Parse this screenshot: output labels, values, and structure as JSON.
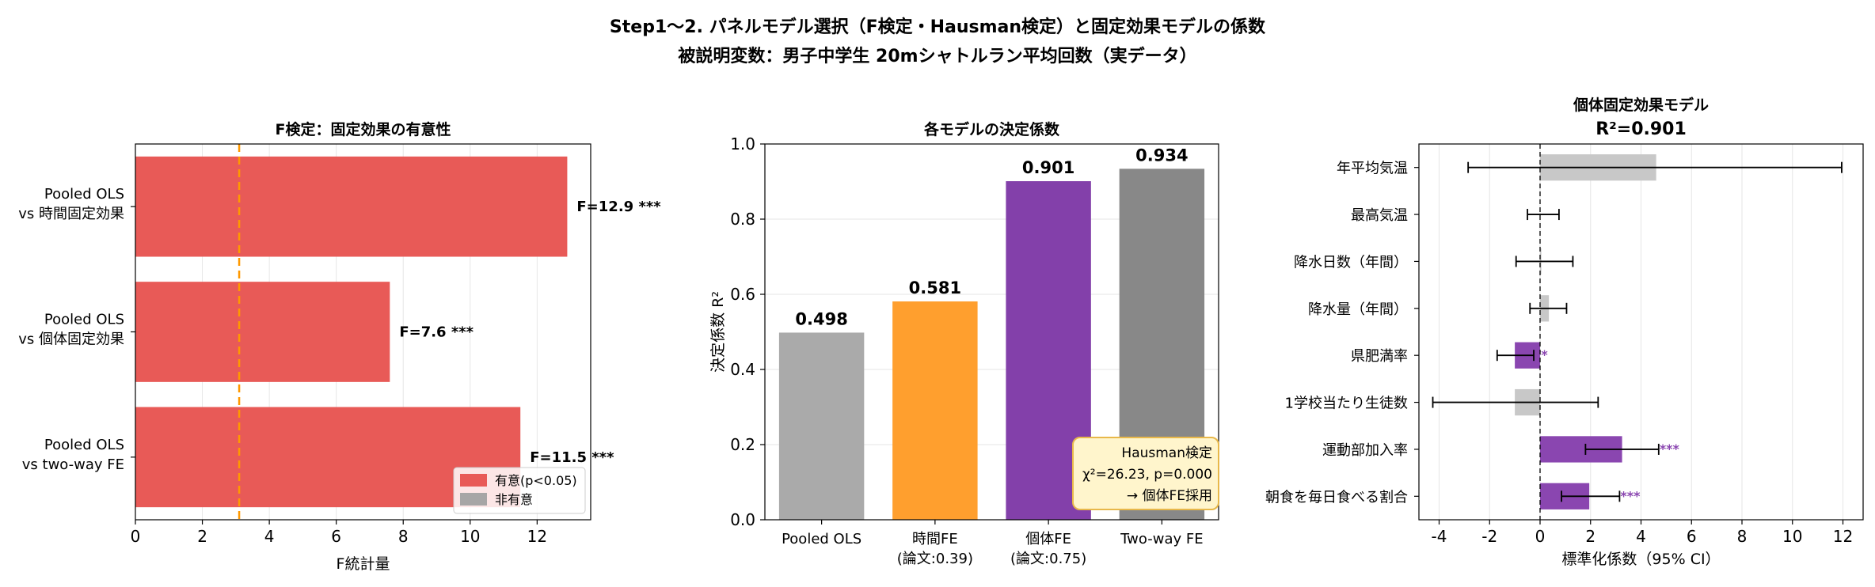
{
  "figure": {
    "title_line1": "Step1～2. パネルモデル選択（F検定・Hausman検定）と固定効果モデルの係数",
    "title_line2": "被説明変数：男子中学生 20mシャトルラン平均回数（実データ）"
  },
  "colors": {
    "significant_red": "#E85A57",
    "nonsignificant_gray": "#A6A6A6",
    "pooled_gray": "#AAAAAA",
    "time_fe_orange": "#FF9F2E",
    "individual_fe_purple": "#8340AA",
    "twoway_gray": "#888888",
    "threshold_orange": "#FF9900",
    "coef_purple": "#8A46B0",
    "coef_gray": "#C8C8C8",
    "hausman_box_fill": "#FFF5CC",
    "hausman_box_edge": "#E8B84A"
  },
  "chart_data": [
    {
      "type": "bar",
      "orientation": "horizontal",
      "title": "F検定：固定効果の有意性",
      "xlabel": "F統計量",
      "ylabel": "",
      "categories": [
        [
          "Pooled OLS",
          "vs 時間固定効果"
        ],
        [
          "Pooled OLS",
          "vs 個体固定効果"
        ],
        [
          "Pooled OLS",
          "vs two-way FE"
        ]
      ],
      "values": [
        12.9,
        7.6,
        11.5
      ],
      "value_labels": [
        "F=12.9 ***",
        "F=7.6 ***",
        "F=11.5 ***"
      ],
      "significant": [
        true,
        true,
        true
      ],
      "threshold_line": 3.1,
      "xlim": [
        0,
        13.6
      ],
      "xticks": [
        0,
        2,
        4,
        6,
        8,
        10,
        12
      ],
      "grid": "x",
      "legend": {
        "placement": "lower-right",
        "entries": [
          {
            "label": "有意(p<0.05)",
            "color": "#E85A57"
          },
          {
            "label": "非有意",
            "color": "#A6A6A6"
          }
        ]
      }
    },
    {
      "type": "bar",
      "title": "各モデルの決定係数",
      "xlabel": "",
      "ylabel": "決定係数 R²",
      "categories": [
        [
          "Pooled OLS"
        ],
        [
          "時間FE",
          "(論文:0.39)"
        ],
        [
          "個体FE",
          "(論文:0.75)"
        ],
        [
          "Two-way FE"
        ]
      ],
      "values": [
        0.498,
        0.581,
        0.901,
        0.934
      ],
      "value_labels": [
        "0.498",
        "0.581",
        "0.901",
        "0.934"
      ],
      "colors": [
        "#AAAAAA",
        "#FF9F2E",
        "#8340AA",
        "#888888"
      ],
      "ylim": [
        0,
        1.0
      ],
      "yticks": [
        0.0,
        0.2,
        0.4,
        0.6,
        0.8,
        1.0
      ],
      "grid": "y",
      "annotation": {
        "placement": "lower-right",
        "lines": [
          "Hausman検定",
          "χ²=26.23, p=0.000",
          "→ 個体FE採用"
        ]
      }
    },
    {
      "type": "bar",
      "orientation": "horizontal",
      "subtype": "coefficient-plot-with-ci",
      "title_line1": "個体固定効果モデル",
      "title_line2": "R²=0.901",
      "xlabel": "標準化係数（95% CI）",
      "ylabel": "",
      "categories": [
        "年平均気温",
        "最高気温",
        "降水日数（年間）",
        "降水量（年間）",
        "県肥満率",
        "1学校当たり生徒数",
        "運動部加入率",
        "朝食を毎日食べる割合"
      ],
      "values": [
        4.6,
        0.0,
        0.05,
        0.35,
        -1.0,
        -1.0,
        3.25,
        1.95
      ],
      "ci_low": [
        -2.85,
        -0.5,
        -0.95,
        -0.4,
        -1.7,
        -4.25,
        1.8,
        0.85
      ],
      "ci_high": [
        11.95,
        0.75,
        1.3,
        1.05,
        -0.25,
        2.3,
        4.7,
        3.15
      ],
      "significant": [
        false,
        false,
        false,
        false,
        true,
        false,
        true,
        true
      ],
      "sig_labels": [
        "",
        "",
        "",
        "",
        "**",
        "",
        "***",
        "***"
      ],
      "xlim": [
        -4.8,
        12.8
      ],
      "xticks": [
        -4,
        -2,
        0,
        2,
        4,
        6,
        8,
        10,
        12
      ],
      "xtick_labels": [
        "-4",
        "-2",
        "0",
        "2",
        "4",
        "6",
        "8",
        "10",
        "12"
      ],
      "zero_line": 0,
      "grid": "x"
    }
  ]
}
